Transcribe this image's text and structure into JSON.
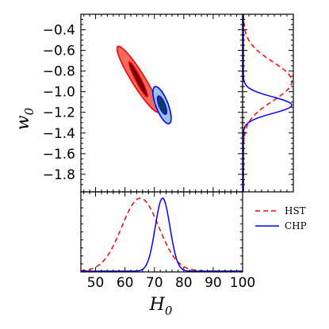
{
  "chart_data": {
    "type": "scatter",
    "subtype": "corner-plot (2D confidence contours with 1D marginal posteriors)",
    "xlabel": "H",
    "xlabel_sub": "0",
    "ylabel": "w",
    "ylabel_sub": "0",
    "x_range": [
      45,
      100
    ],
    "y_range": [
      -1.97,
      -0.25
    ],
    "x_ticks": [
      "50",
      "60",
      "70",
      "80",
      "90",
      "100"
    ],
    "x_tick_values": [
      50,
      60,
      70,
      80,
      90,
      100
    ],
    "y_ticks": [
      "−0.4",
      "−0.6",
      "−0.8",
      "−1.0",
      "−1.2",
      "−1.4",
      "−1.6",
      "−1.8"
    ],
    "y_tick_values": [
      -0.4,
      -0.6,
      -0.8,
      -1.0,
      -1.2,
      -1.4,
      -1.6,
      -1.8
    ],
    "legend": {
      "placement": "lower-right (empty panel)"
    },
    "series": [
      {
        "name": "HST",
        "color": "#ff0000",
        "fill_outer": "#f36b5f",
        "fill_inner": "#7a0000",
        "line_style": "dashed",
        "contour_68": {
          "center": [
            64.5,
            -0.88
          ],
          "sigma_H0": 3.2,
          "sigma_w0": 0.17,
          "correlation": -0.94
        },
        "contour_95": {
          "center": [
            64.5,
            -0.88
          ],
          "sigma_H0": 7.2,
          "sigma_w0": 0.32,
          "correlation": -0.93
        },
        "marginal_H0": {
          "mean": 65.2,
          "sigma": 6.3
        },
        "marginal_w0": {
          "mean": -0.9,
          "sigma": 0.19
        }
      },
      {
        "name": "CHP",
        "color": "#0000ff",
        "fill_outer": "#9cc1e6",
        "fill_inner": "#0c3f5f",
        "line_style": "solid",
        "contour_68": {
          "center": [
            72.6,
            -1.13
          ],
          "sigma_H0": 1.6,
          "sigma_w0": 0.09,
          "correlation": -0.7
        },
        "contour_95": {
          "center": [
            72.6,
            -1.13
          ],
          "sigma_H0": 3.1,
          "sigma_w0": 0.18,
          "correlation": -0.7
        },
        "marginal_H0": {
          "mean": 72.8,
          "sigma": 2.5
        },
        "marginal_w0": {
          "mean": -1.13,
          "sigma": 0.08
        }
      }
    ]
  }
}
